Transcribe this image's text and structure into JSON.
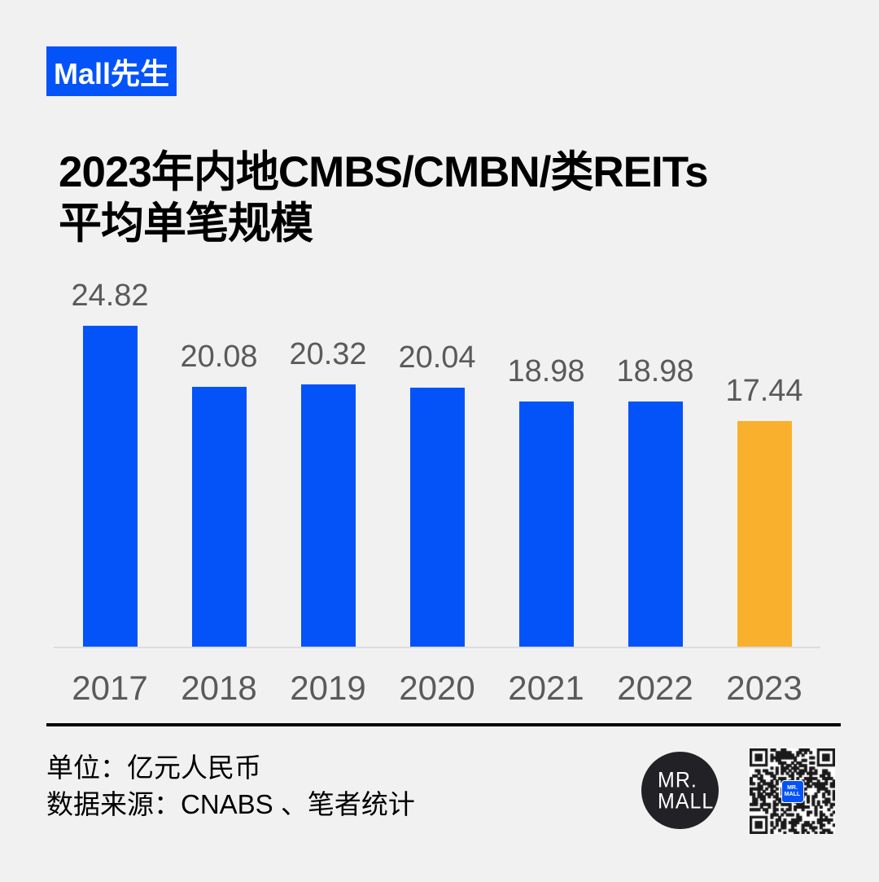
{
  "page": {
    "background": "#f1f1f1"
  },
  "colors": {
    "brand_blue": "#0453f8",
    "highlight_orange": "#f9b12d",
    "label_gray": "#5a5a5a",
    "axis_gray": "#dcdcdc",
    "logo_black": "#222226"
  },
  "badge": {
    "label": "Mall先生"
  },
  "title": {
    "line1": "2023年内地CMBS/CMBN/类REITs",
    "line2": "平均单笔规模"
  },
  "chart_data": {
    "type": "bar",
    "title": "2023年内地CMBS/CMBN/类REITs平均单笔规模",
    "categories": [
      "2017",
      "2018",
      "2019",
      "2020",
      "2021",
      "2022",
      "2023"
    ],
    "values": [
      24.82,
      20.08,
      20.32,
      20.04,
      18.98,
      18.98,
      17.44
    ],
    "value_labels": [
      "24.82",
      "20.08",
      "20.32",
      "20.04",
      "18.98",
      "18.98",
      "17.44"
    ],
    "bar_colors": [
      "#0453f8",
      "#0453f8",
      "#0453f8",
      "#0453f8",
      "#0453f8",
      "#0453f8",
      "#f9b12d"
    ],
    "highlight_index": 6,
    "unit": "亿元人民币",
    "xlabel": "",
    "ylabel": "",
    "ylim": [
      0,
      26
    ],
    "grid": false,
    "legend": "none",
    "data_labels_shown": true
  },
  "footer": {
    "unit_label": "单位：亿元人民币",
    "source_label": "数据来源：CNABS 、笔者统计"
  },
  "logo": {
    "line1": "MR.",
    "line2": "MALL"
  },
  "qr_center": {
    "line1": "MR.",
    "line2": "MALL"
  }
}
